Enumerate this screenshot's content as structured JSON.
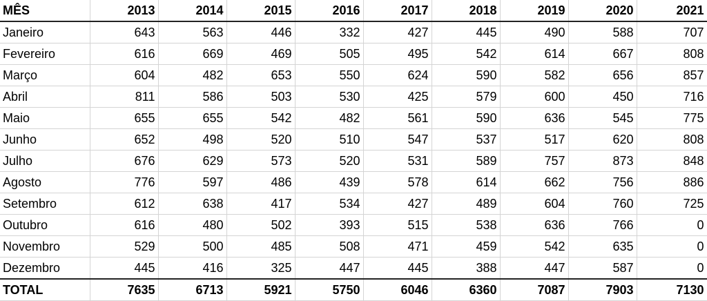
{
  "table": {
    "headers": [
      "MÊS",
      "2013",
      "2014",
      "2015",
      "2016",
      "2017",
      "2018",
      "2019",
      "2020",
      "2021"
    ],
    "rows": [
      [
        "Janeiro",
        "643",
        "563",
        "446",
        "332",
        "427",
        "445",
        "490",
        "588",
        "707"
      ],
      [
        "Fevereiro",
        "616",
        "669",
        "469",
        "505",
        "495",
        "542",
        "614",
        "667",
        "808"
      ],
      [
        "Março",
        "604",
        "482",
        "653",
        "550",
        "624",
        "590",
        "582",
        "656",
        "857"
      ],
      [
        "Abril",
        "811",
        "586",
        "503",
        "530",
        "425",
        "579",
        "600",
        "450",
        "716"
      ],
      [
        "Maio",
        "655",
        "655",
        "542",
        "482",
        "561",
        "590",
        "636",
        "545",
        "775"
      ],
      [
        "Junho",
        "652",
        "498",
        "520",
        "510",
        "547",
        "537",
        "517",
        "620",
        "808"
      ],
      [
        "Julho",
        "676",
        "629",
        "573",
        "520",
        "531",
        "589",
        "757",
        "873",
        "848"
      ],
      [
        "Agosto",
        "776",
        "597",
        "486",
        "439",
        "578",
        "614",
        "662",
        "756",
        "886"
      ],
      [
        "Setembro",
        "612",
        "638",
        "417",
        "534",
        "427",
        "489",
        "604",
        "760",
        "725"
      ],
      [
        "Outubro",
        "616",
        "480",
        "502",
        "393",
        "515",
        "538",
        "636",
        "766",
        "0"
      ],
      [
        "Novembro",
        "529",
        "500",
        "485",
        "508",
        "471",
        "459",
        "542",
        "635",
        "0"
      ],
      [
        "Dezembro",
        "445",
        "416",
        "325",
        "447",
        "445",
        "388",
        "447",
        "587",
        "0"
      ]
    ],
    "total": [
      "TOTAL",
      "7635",
      "6713",
      "5921",
      "5750",
      "6046",
      "6360",
      "7087",
      "7903",
      "7130"
    ]
  }
}
